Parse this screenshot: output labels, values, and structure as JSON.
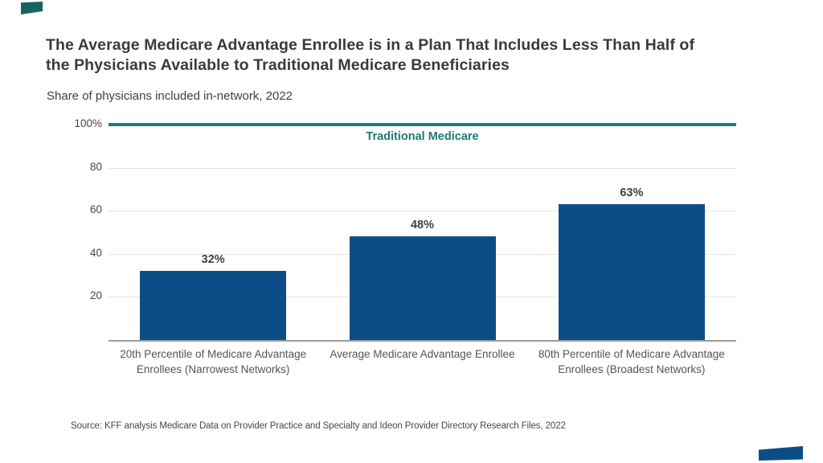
{
  "page": {
    "title_lines": [
      "The Average Medicare Advantage Enrollee is in a Plan That Includes Less Than Half of",
      "the Physicians Available to Traditional Medicare Beneficiaries"
    ],
    "subtitle": "Share of physicians included in-network, 2022",
    "source": "Source: KFF analysis Medicare Data on Provider Practice and Specialty and Ideon Provider Directory Research Files, 2022"
  },
  "chart_data": {
    "type": "bar",
    "title": "Share of physicians included in-network, 2022",
    "categories": [
      "20th Percentile of Medicare Advantage Enrollees (Narrowest Networks)",
      "Average Medicare Advantage Enrollee",
      "80th Percentile of Medicare Advantage Enrollees (Broadest Networks)"
    ],
    "values": [
      32,
      48,
      63
    ],
    "value_labels": [
      "32%",
      "48%",
      "63%"
    ],
    "xlabel": "",
    "ylabel": "",
    "ylim": [
      0,
      100
    ],
    "yticks": [
      20,
      40,
      60,
      80,
      100
    ],
    "ytick_labels": [
      "20",
      "40",
      "60",
      "80",
      "100%"
    ],
    "grid": "horizontal-light",
    "legend": "none",
    "reference_line": {
      "value": 100,
      "label": "Traditional Medicare"
    }
  },
  "colors": {
    "bar": "#0c4d87",
    "reference_line": "#217a6e",
    "reference_label": "#217a6e",
    "title_text": "#3a3a3a",
    "gridline": "#e4e4e4",
    "baseline": "#9b9b9b",
    "accent_top_left": "#15655c",
    "accent_bottom_right": "#0c4d87"
  }
}
